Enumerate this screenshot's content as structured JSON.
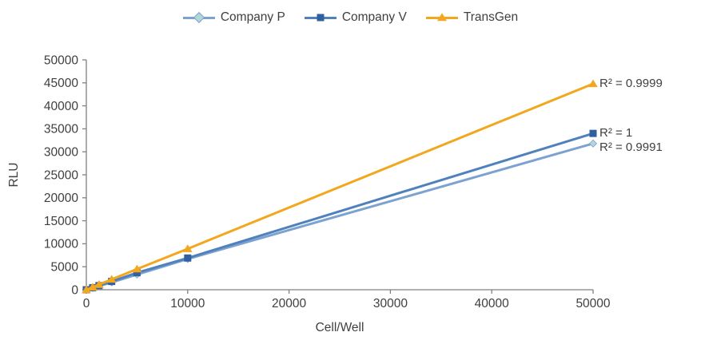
{
  "figure": {
    "background": "#ffffff"
  },
  "chart_data": {
    "type": "line",
    "title": "",
    "xlabel": "Cell/Well",
    "ylabel": "RLU",
    "x": [
      0,
      625,
      1250,
      2500,
      5000,
      10000,
      50000
    ],
    "xlim": [
      0,
      50000
    ],
    "ylim": [
      0,
      50000
    ],
    "x_ticks": [
      "0",
      "10000",
      "20000",
      "30000",
      "40000",
      "50000"
    ],
    "x_tick_values": [
      0,
      10000,
      20000,
      30000,
      40000,
      50000
    ],
    "y_ticks": [
      "0",
      "5000",
      "10000",
      "15000",
      "20000",
      "25000",
      "30000",
      "35000",
      "40000",
      "45000",
      "50000"
    ],
    "y_tick_values": [
      0,
      5000,
      10000,
      15000,
      20000,
      25000,
      30000,
      35000,
      40000,
      45000,
      50000
    ],
    "grid": false,
    "legend_position": "top",
    "axis_color": "#808080",
    "text_color": "#3f3f3f",
    "series": [
      {
        "name": "Company P",
        "marker": "diamond",
        "line_color": "#7ba2d0",
        "marker_color": "#b5d6d4",
        "values": [
          0,
          400,
          800,
          1600,
          3300,
          6700,
          31800
        ],
        "r2_label": "R² = 0.9991"
      },
      {
        "name": "Company V",
        "marker": "square",
        "line_color": "#4f81bd",
        "marker_color": "#31609f",
        "values": [
          0,
          450,
          900,
          1800,
          3700,
          6900,
          34000
        ],
        "r2_label": "R² = 1"
      },
      {
        "name": "TransGen",
        "marker": "triangle",
        "line_color": "#f2a71e",
        "marker_color": "#f2a71e",
        "values": [
          0,
          560,
          1130,
          2260,
          4500,
          8900,
          44800
        ],
        "r2_label": "R² = 0.9999"
      }
    ]
  }
}
